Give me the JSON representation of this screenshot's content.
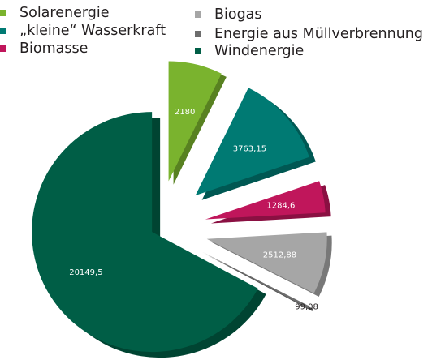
{
  "chart_data": {
    "type": "pie",
    "title": "",
    "categories": [
      "Solarenergie",
      "„kleine“ Wasserkraft",
      "Biomasse",
      "Biogas",
      "Energie aus Müllverbrennung",
      "Windenergie"
    ],
    "values": [
      2180,
      3763.15,
      1284.6,
      2512.88,
      99.08,
      20149.5
    ],
    "value_labels": [
      "2180",
      "3763,15",
      "1284,6",
      "2512,88",
      "99,08",
      "20149,5"
    ],
    "colors": [
      "#7ab32e",
      "#007a73",
      "#c0165b",
      "#a6a6a6",
      "#6d6d6d",
      "#005e46"
    ],
    "legend_position": "top",
    "exploded": true,
    "three_d": true
  }
}
